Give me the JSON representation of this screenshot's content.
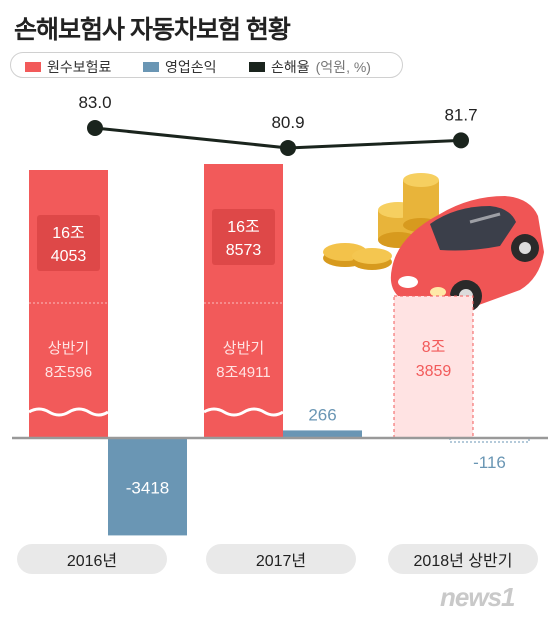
{
  "title": "손해보험사 자동차보험 현황",
  "legend": {
    "premium": "원수보험료",
    "profit": "영업손익",
    "loss_ratio": "손해율",
    "unit": "(억원, %)"
  },
  "colors": {
    "premium": "#f25a5a",
    "profit": "#6a96b4",
    "loss_ratio": "#1a241d",
    "premium_light": "#ffe3e3"
  },
  "chart_data": {
    "type": "bar",
    "categories": [
      "2016년",
      "2017년",
      "2018년 상반기"
    ],
    "premium_labels": [
      {
        "line1": "16조",
        "line2": "4053",
        "h1_line1": "상반기",
        "h1_line2": "8조596"
      },
      {
        "line1": "16조",
        "line2": "8573",
        "h1_line1": "상반기",
        "h1_line2": "8조4911"
      },
      {
        "line1": "8조",
        "line2": "3859"
      }
    ],
    "series": [
      {
        "name": "원수보험료",
        "values": [
          164053,
          168573,
          83859
        ],
        "first_half": [
          80596,
          84911,
          83859
        ]
      },
      {
        "name": "영업손익",
        "values": [
          -3418,
          266,
          -116
        ]
      },
      {
        "name": "손해율",
        "values": [
          83.0,
          80.9,
          81.7
        ]
      }
    ],
    "profit_labels": [
      "-3418",
      "266",
      "-116"
    ],
    "loss_ratio_labels": [
      "83.0",
      "80.9",
      "81.7"
    ]
  },
  "source_logo": "news1"
}
